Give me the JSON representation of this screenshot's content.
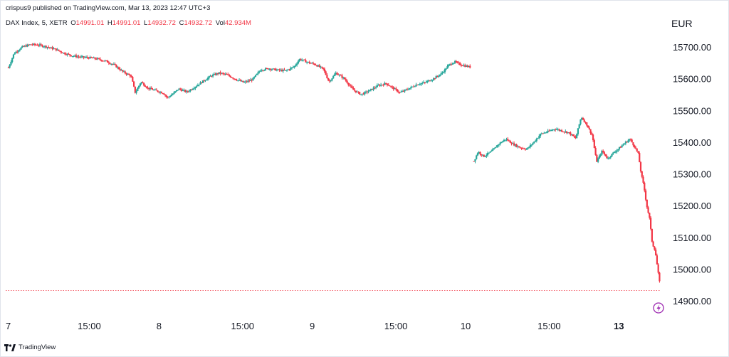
{
  "header": {
    "published": "crispus9 published on TradingView.com, Mar 13, 2023 12:47 UTC+3"
  },
  "legend": {
    "symbol": "DAX Index, 5, XETR",
    "open_label": "O",
    "open": "14991.01",
    "high_label": "H",
    "high": "14991.01",
    "low_label": "L",
    "low": "14932.72",
    "close_label": "C",
    "close": "14932.72",
    "vol_label": "Vol",
    "vol": "42.934M"
  },
  "footer": {
    "brand": "TradingView"
  },
  "colors": {
    "up": "#26a69a",
    "down": "#f23645",
    "text": "#131722",
    "price_line": "#f23645",
    "alert": "#9c27b0"
  },
  "chart_data": {
    "type": "candlestick",
    "currency": "EUR",
    "y_ticks": [
      "15700.00",
      "15600.00",
      "15500.00",
      "15400.00",
      "15300.00",
      "15200.00",
      "15100.00",
      "15000.00",
      "14900.00"
    ],
    "y_tick_values": [
      15700,
      15600,
      15500,
      15400,
      15300,
      15200,
      15100,
      15000,
      14900
    ],
    "x_ticks": [
      {
        "label": "7",
        "bold": false,
        "t": 0
      },
      {
        "label": "15:00",
        "bold": false,
        "t": 6
      },
      {
        "label": "8",
        "bold": false,
        "t": 11
      },
      {
        "label": "15:00",
        "bold": false,
        "t": 17
      },
      {
        "label": "9",
        "bold": false,
        "t": 22
      },
      {
        "label": "15:00",
        "bold": false,
        "t": 28
      },
      {
        "label": "10",
        "bold": false,
        "t": 33
      },
      {
        "label": "15:00",
        "bold": false,
        "t": 39
      },
      {
        "label": "13",
        "bold": true,
        "t": 44
      }
    ],
    "t_range": [
      0,
      47
    ],
    "ylim": [
      14850,
      15750
    ],
    "last_price": 14932.72,
    "grid": false,
    "close_path": [
      [
        0.2,
        15635
      ],
      [
        0.6,
        15680
      ],
      [
        1.2,
        15700
      ],
      [
        1.8,
        15708
      ],
      [
        2.4,
        15706
      ],
      [
        3.0,
        15700
      ],
      [
        3.6,
        15692
      ],
      [
        4.2,
        15680
      ],
      [
        4.8,
        15672
      ],
      [
        5.4,
        15668
      ],
      [
        6.0,
        15666
      ],
      [
        6.6,
        15662
      ],
      [
        7.2,
        15655
      ],
      [
        7.8,
        15643
      ],
      [
        8.4,
        15622
      ],
      [
        9.0,
        15608
      ],
      [
        9.3,
        15555
      ],
      [
        9.7,
        15590
      ],
      [
        10.2,
        15570
      ],
      [
        10.8,
        15562
      ],
      [
        11.3,
        15555
      ],
      [
        11.6,
        15540
      ],
      [
        12.0,
        15552
      ],
      [
        12.4,
        15568
      ],
      [
        13.0,
        15558
      ],
      [
        13.5,
        15572
      ],
      [
        14.1,
        15590
      ],
      [
        14.7,
        15608
      ],
      [
        15.3,
        15618
      ],
      [
        15.9,
        15612
      ],
      [
        16.5,
        15598
      ],
      [
        17.1,
        15588
      ],
      [
        17.7,
        15597
      ],
      [
        18.3,
        15628
      ],
      [
        18.9,
        15632
      ],
      [
        19.5,
        15627
      ],
      [
        20.1,
        15625
      ],
      [
        20.7,
        15638
      ],
      [
        21.1,
        15662
      ],
      [
        21.6,
        15653
      ],
      [
        22.2,
        15645
      ],
      [
        22.8,
        15630
      ],
      [
        23.2,
        15590
      ],
      [
        23.7,
        15618
      ],
      [
        24.3,
        15600
      ],
      [
        24.9,
        15566
      ],
      [
        25.5,
        15550
      ],
      [
        26.1,
        15562
      ],
      [
        26.7,
        15578
      ],
      [
        27.3,
        15585
      ],
      [
        27.8,
        15570
      ],
      [
        28.3,
        15556
      ],
      [
        28.9,
        15568
      ],
      [
        29.5,
        15582
      ],
      [
        30.1,
        15588
      ],
      [
        30.7,
        15600
      ],
      [
        31.3,
        15617
      ],
      [
        31.8,
        15643
      ],
      [
        32.2,
        15653
      ],
      [
        32.6,
        15645
      ],
      [
        33.0,
        15640
      ],
      [
        33.4,
        15636
      ]
    ],
    "close_path_2": [
      [
        33.6,
        15340
      ],
      [
        33.9,
        15370
      ],
      [
        34.3,
        15355
      ],
      [
        34.9,
        15372
      ],
      [
        35.4,
        15395
      ],
      [
        35.9,
        15410
      ],
      [
        36.4,
        15394
      ],
      [
        36.9,
        15383
      ],
      [
        37.4,
        15378
      ],
      [
        37.9,
        15400
      ],
      [
        38.4,
        15426
      ],
      [
        38.9,
        15433
      ],
      [
        39.4,
        15442
      ],
      [
        39.9,
        15436
      ],
      [
        40.4,
        15430
      ],
      [
        40.9,
        15412
      ],
      [
        41.3,
        15480
      ],
      [
        41.7,
        15455
      ],
      [
        42.1,
        15420
      ],
      [
        42.4,
        15338
      ],
      [
        42.8,
        15372
      ],
      [
        43.2,
        15348
      ],
      [
        43.6,
        15366
      ],
      [
        44.0,
        15380
      ],
      [
        44.4,
        15396
      ],
      [
        44.8,
        15410
      ],
      [
        45.2,
        15380
      ],
      [
        45.4,
        15362
      ],
      [
        45.6,
        15300
      ],
      [
        45.8,
        15260
      ],
      [
        46.0,
        15200
      ],
      [
        46.2,
        15160
      ],
      [
        46.4,
        15080
      ],
      [
        46.6,
        15060
      ],
      [
        46.8,
        14995
      ],
      [
        47.0,
        14935
      ]
    ]
  },
  "alert_icon": "lightning-icon"
}
